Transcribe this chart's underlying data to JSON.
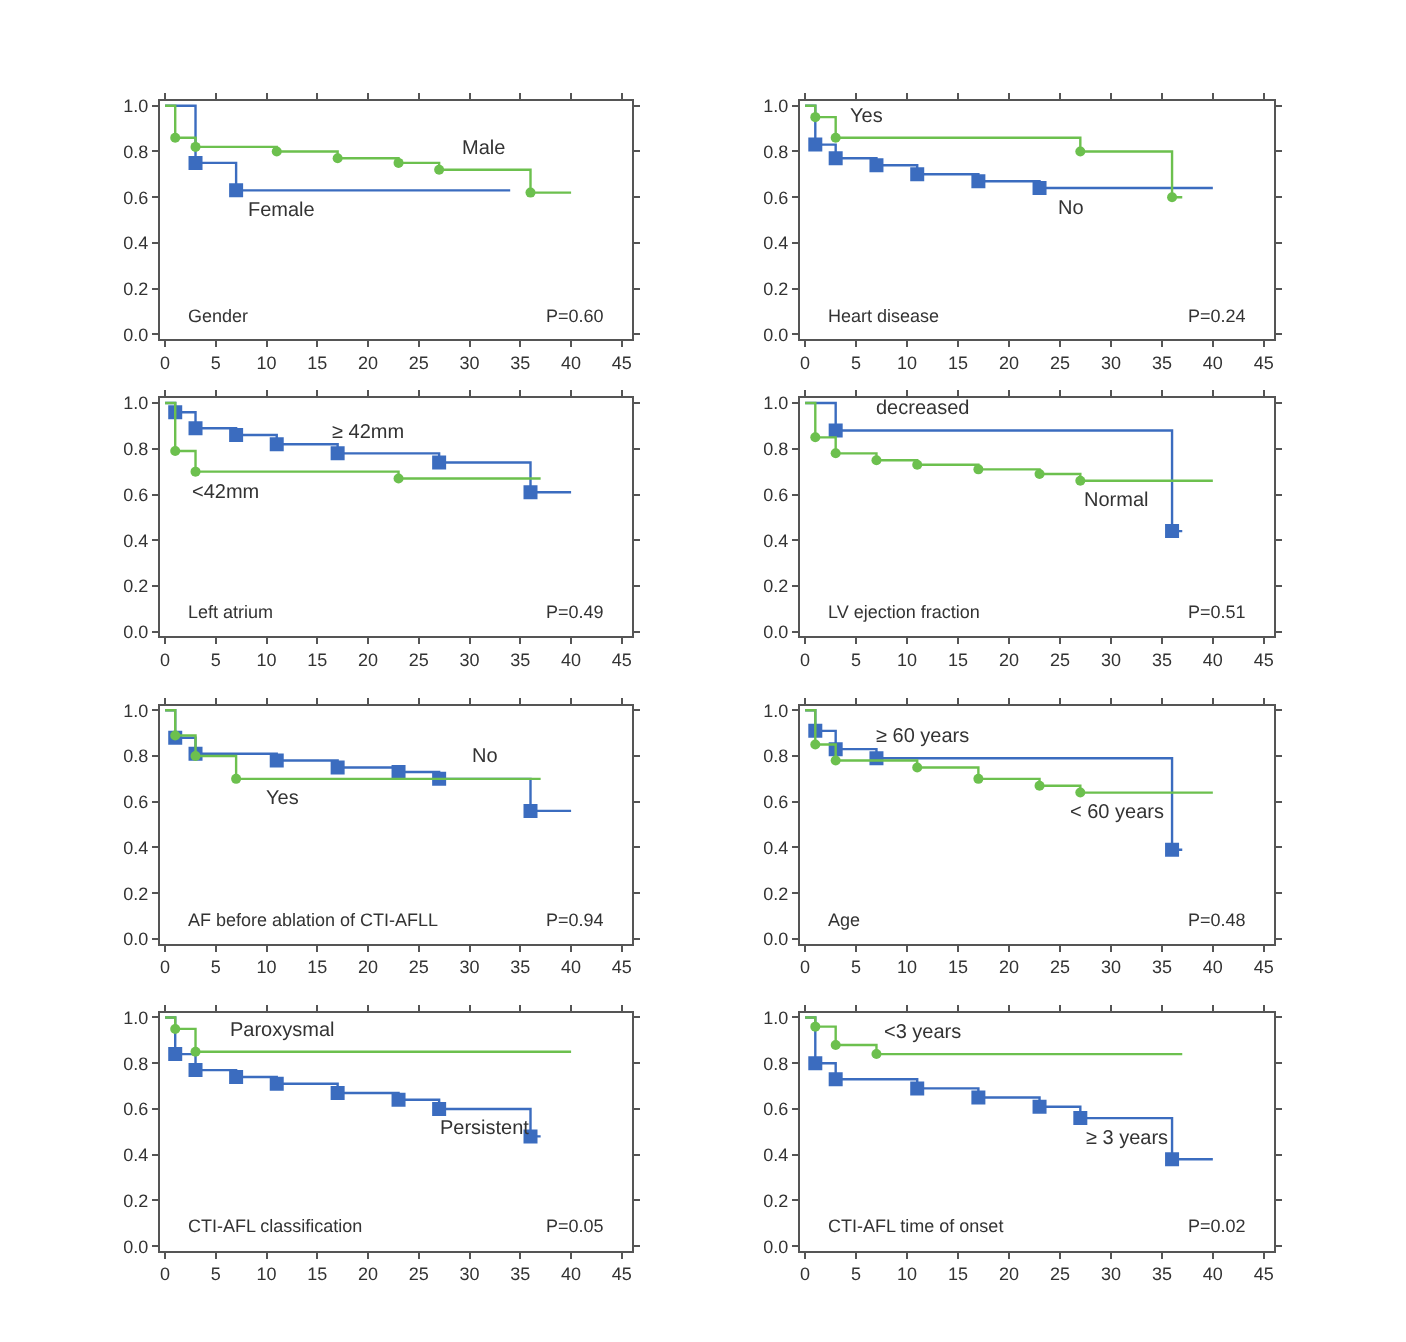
{
  "chart_data": [
    {
      "type": "step",
      "xlim": [
        -0.5,
        46
      ],
      "ylim": [
        -0.02,
        1.02
      ],
      "xticks": [
        0,
        5,
        10,
        15,
        20,
        25,
        30,
        35,
        40,
        45
      ],
      "yticks": [
        {
          "value": 0,
          "label": "0.0"
        },
        {
          "value": 0.2,
          "label": "0.2"
        },
        {
          "value": 0.4,
          "label": "0.4"
        },
        {
          "value": 0.6,
          "label": "0.6"
        },
        {
          "value": 0.8,
          "label": "0.8"
        },
        {
          "value": 1,
          "label": "1.0"
        }
      ],
      "annotations": [
        "Gender",
        "P=0.60"
      ],
      "series": [
        {
          "name": "Female",
          "color": "#3b6cbf",
          "marker": "square",
          "x": [
            0,
            3,
            7,
            34
          ],
          "values": [
            1.0,
            0.75,
            0.63,
            0.63
          ]
        },
        {
          "color": "#6cc04e",
          "marker": "circle",
          "name": "Male",
          "x": [
            0,
            1,
            3,
            11,
            17,
            23,
            27,
            36,
            40
          ],
          "values": [
            1.0,
            0.86,
            0.82,
            0.8,
            0.77,
            0.75,
            0.72,
            0.62,
            0.62
          ]
        }
      ]
    },
    {
      "type": "step",
      "xlim": [
        -0.5,
        46
      ],
      "ylim": [
        -0.02,
        1.02
      ],
      "xticks": [
        0,
        5,
        10,
        15,
        20,
        25,
        30,
        35,
        40,
        45
      ],
      "yticks": [
        {
          "value": 0,
          "label": "0.0"
        },
        {
          "value": 0.2,
          "label": "0.2"
        },
        {
          "value": 0.4,
          "label": "0.4"
        },
        {
          "value": 0.6,
          "label": "0.6"
        },
        {
          "value": 0.8,
          "label": "0.8"
        },
        {
          "value": 1,
          "label": "1.0"
        }
      ],
      "annotations": [
        "Heart disease",
        "P=0.24"
      ],
      "series": [
        {
          "name": "No",
          "color": "#3b6cbf",
          "marker": "square",
          "x": [
            0,
            1,
            3,
            7,
            11,
            17,
            23,
            40
          ],
          "values": [
            1.0,
            0.83,
            0.77,
            0.74,
            0.7,
            0.67,
            0.64,
            0.64
          ]
        },
        {
          "color": "#6cc04e",
          "marker": "circle",
          "name": "Yes",
          "x": [
            0,
            1,
            3,
            27,
            36,
            37
          ],
          "values": [
            1.0,
            0.95,
            0.86,
            0.8,
            0.6,
            0.6
          ]
        }
      ]
    },
    {
      "type": "step",
      "xlim": [
        -0.5,
        46
      ],
      "ylim": [
        -0.02,
        1.02
      ],
      "xticks": [
        0,
        5,
        10,
        15,
        20,
        25,
        30,
        35,
        40,
        45
      ],
      "yticks": [
        {
          "value": 0,
          "label": "0.0"
        },
        {
          "value": 0.2,
          "label": "0.2"
        },
        {
          "value": 0.4,
          "label": "0.4"
        },
        {
          "value": 0.6,
          "label": "0.6"
        },
        {
          "value": 0.8,
          "label": "0.8"
        },
        {
          "value": 1,
          "label": "1.0"
        }
      ],
      "annotations": [
        "Left atrium",
        "P=0.49"
      ],
      "series": [
        {
          "name": "≥ 42mm",
          "color": "#3b6cbf",
          "marker": "square",
          "x": [
            0,
            1,
            3,
            7,
            11,
            17,
            27,
            36,
            40
          ],
          "values": [
            1.0,
            0.96,
            0.89,
            0.86,
            0.82,
            0.78,
            0.74,
            0.61,
            0.61
          ]
        },
        {
          "color": "#6cc04e",
          "marker": "circle",
          "name": "<42mm",
          "x": [
            0,
            1,
            3,
            23,
            37
          ],
          "values": [
            1.0,
            0.79,
            0.7,
            0.67,
            0.67
          ]
        }
      ]
    },
    {
      "type": "step",
      "xlim": [
        -0.5,
        46
      ],
      "ylim": [
        -0.02,
        1.02
      ],
      "xticks": [
        0,
        5,
        10,
        15,
        20,
        25,
        30,
        35,
        40,
        45
      ],
      "yticks": [
        {
          "value": 0,
          "label": "0.0"
        },
        {
          "value": 0.2,
          "label": "0.2"
        },
        {
          "value": 0.4,
          "label": "0.4"
        },
        {
          "value": 0.6,
          "label": "0.6"
        },
        {
          "value": 0.8,
          "label": "0.8"
        },
        {
          "value": 1,
          "label": "1.0"
        }
      ],
      "annotations": [
        "LV ejection fraction",
        "P=0.51"
      ],
      "series": [
        {
          "name": "decreased",
          "color": "#3b6cbf",
          "marker": "square",
          "x": [
            0,
            3,
            36,
            37
          ],
          "values": [
            1.0,
            0.88,
            0.44,
            0.44
          ]
        },
        {
          "color": "#6cc04e",
          "marker": "circle",
          "name": "Normal",
          "x": [
            0,
            1,
            3,
            7,
            11,
            17,
            23,
            27,
            40
          ],
          "values": [
            1.0,
            0.85,
            0.78,
            0.75,
            0.73,
            0.71,
            0.69,
            0.66,
            0.66
          ]
        }
      ]
    },
    {
      "type": "step",
      "xlim": [
        -0.5,
        46
      ],
      "ylim": [
        -0.02,
        1.02
      ],
      "xticks": [
        0,
        5,
        10,
        15,
        20,
        25,
        30,
        35,
        40,
        45
      ],
      "yticks": [
        {
          "value": 0,
          "label": "0.0"
        },
        {
          "value": 0.2,
          "label": "0.2"
        },
        {
          "value": 0.4,
          "label": "0.4"
        },
        {
          "value": 0.6,
          "label": "0.6"
        },
        {
          "value": 0.8,
          "label": "0.8"
        },
        {
          "value": 1,
          "label": "1.0"
        }
      ],
      "annotations": [
        "AF before ablation of CTI-AFLL",
        "P=0.94"
      ],
      "series": [
        {
          "name": "No",
          "color": "#3b6cbf",
          "marker": "square",
          "x": [
            0,
            1,
            3,
            11,
            17,
            23,
            27,
            36,
            40
          ],
          "values": [
            1.0,
            0.88,
            0.81,
            0.78,
            0.75,
            0.73,
            0.7,
            0.56,
            0.56
          ]
        },
        {
          "color": "#6cc04e",
          "marker": "circle",
          "name": "Yes",
          "x": [
            0,
            1,
            3,
            7,
            37
          ],
          "values": [
            1.0,
            0.89,
            0.8,
            0.7,
            0.7
          ]
        }
      ]
    },
    {
      "type": "step",
      "xlim": [
        -0.5,
        46
      ],
      "ylim": [
        -0.02,
        1.02
      ],
      "xticks": [
        0,
        5,
        10,
        15,
        20,
        25,
        30,
        35,
        40,
        45
      ],
      "yticks": [
        {
          "value": 0,
          "label": "0.0"
        },
        {
          "value": 0.2,
          "label": "0.2"
        },
        {
          "value": 0.4,
          "label": "0.4"
        },
        {
          "value": 0.6,
          "label": "0.6"
        },
        {
          "value": 0.8,
          "label": "0.8"
        },
        {
          "value": 1,
          "label": "1.0"
        }
      ],
      "annotations": [
        "Age",
        "P=0.48"
      ],
      "series": [
        {
          "name": "≥ 60 years",
          "color": "#3b6cbf",
          "marker": "square",
          "x": [
            0,
            1,
            3,
            7,
            36,
            37
          ],
          "values": [
            1.0,
            0.91,
            0.83,
            0.79,
            0.39,
            0.39
          ]
        },
        {
          "color": "#6cc04e",
          "marker": "circle",
          "name": "< 60 years",
          "x": [
            0,
            1,
            3,
            11,
            17,
            23,
            27,
            40
          ],
          "values": [
            1.0,
            0.85,
            0.78,
            0.75,
            0.7,
            0.67,
            0.64,
            0.64
          ]
        }
      ]
    },
    {
      "type": "step",
      "xlim": [
        -0.5,
        46
      ],
      "ylim": [
        -0.02,
        1.02
      ],
      "xticks": [
        0,
        5,
        10,
        15,
        20,
        25,
        30,
        35,
        40,
        45
      ],
      "yticks": [
        {
          "value": 0,
          "label": "0.0"
        },
        {
          "value": 0.2,
          "label": "0.2"
        },
        {
          "value": 0.4,
          "label": "0.4"
        },
        {
          "value": 0.6,
          "label": "0.6"
        },
        {
          "value": 0.8,
          "label": "0.8"
        },
        {
          "value": 1,
          "label": "1.0"
        }
      ],
      "annotations": [
        "CTI-AFL classification",
        "P=0.05"
      ],
      "series": [
        {
          "name": "Persistent",
          "color": "#3b6cbf",
          "marker": "square",
          "x": [
            0,
            1,
            3,
            7,
            11,
            17,
            23,
            27,
            36,
            37
          ],
          "values": [
            1.0,
            0.84,
            0.77,
            0.74,
            0.71,
            0.67,
            0.64,
            0.6,
            0.48,
            0.48
          ]
        },
        {
          "color": "#6cc04e",
          "marker": "circle",
          "name": "Paroxysmal",
          "x": [
            0,
            1,
            3,
            40
          ],
          "values": [
            1.0,
            0.95,
            0.85,
            0.85
          ]
        }
      ]
    },
    {
      "type": "step",
      "xlim": [
        -0.5,
        46
      ],
      "ylim": [
        -0.02,
        1.02
      ],
      "xticks": [
        0,
        5,
        10,
        15,
        20,
        25,
        30,
        35,
        40,
        45
      ],
      "yticks": [
        {
          "value": 0,
          "label": "0.0"
        },
        {
          "value": 0.2,
          "label": "0.2"
        },
        {
          "value": 0.4,
          "label": "0.4"
        },
        {
          "value": 0.6,
          "label": "0.6"
        },
        {
          "value": 0.8,
          "label": "0.8"
        },
        {
          "value": 1,
          "label": "1.0"
        }
      ],
      "annotations": [
        "CTI-AFL time of onset",
        "P=0.02"
      ],
      "series": [
        {
          "name": "≥ 3 years",
          "color": "#3b6cbf",
          "marker": "square",
          "x": [
            0,
            1,
            3,
            11,
            17,
            23,
            27,
            36,
            40
          ],
          "values": [
            1.0,
            0.8,
            0.73,
            0.69,
            0.65,
            0.61,
            0.56,
            0.38,
            0.38
          ]
        },
        {
          "color": "#6cc04e",
          "marker": "circle",
          "name": "<3 years",
          "x": [
            0,
            1,
            3,
            7,
            37
          ],
          "values": [
            1.0,
            0.96,
            0.88,
            0.84,
            0.84
          ]
        }
      ]
    }
  ]
}
